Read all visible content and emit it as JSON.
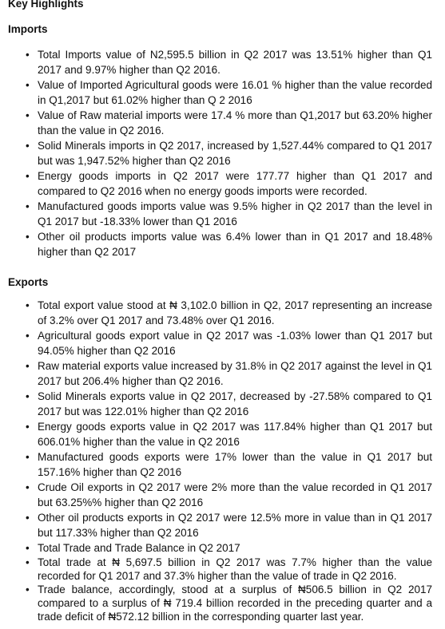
{
  "title": "Key Highlights",
  "sections": [
    {
      "heading": "Imports",
      "items": [
        "Total Imports value of N2,595.5 billion in Q2 2017 was 13.51% higher than Q1 2017 and 9.97% higher than Q2 2016.",
        "Value of Imported Agricultural goods were 16.01 % higher than the value recorded in Q1,2017 but 61.02% higher than Q 2 2016",
        "Value of Raw material imports were 17.4 % more than Q1,2017 but 63.20% higher than the value in Q2 2016.",
        "Solid Minerals imports in Q2 2017, increased by 1,527.44% compared to Q1 2017 but was 1,947.52% higher than Q2 2016",
        "Energy goods imports in Q2 2017 were 177.77 higher than Q1 2017 and compared to Q2 2016 when no energy goods imports were recorded.",
        "Manufactured goods imports value was 9.5% higher in Q2 2017 than the level in Q1 2017 but -18.33% lower than Q1 2016",
        "Other oil products imports value was 6.4% lower than in Q1 2017 and 18.48% higher than Q2 2017"
      ]
    },
    {
      "heading": "Exports",
      "items": [
        "Total export value stood at ₦ 3,102.0 billion in Q2, 2017 representing an increase of 3.2% over Q1 2017 and 73.48% over Q1 2016.",
        "Agricultural goods export value in Q2 2017 was -1.03% lower than Q1 2017 but 94.05% higher than Q2 2016",
        "Raw material exports value increased by 31.8% in Q2 2017 against the level in Q1 2017 but 206.4% higher than Q2 2016.",
        "Solid Minerals exports value in Q2 2017, decreased by -27.58% compared to Q1 2017 but was 122.01% higher than Q2 2016",
        "Energy goods exports value in Q2 2017 was 117.84% higher than Q1 2017 but 606.01% higher than the value in Q2 2016",
        "Manufactured goods exports were 17% lower than the value in Q1 2017 but 157.16% higher than Q2 2016",
        "Crude Oil exports in Q2 2017 were 2% more than the value recorded in Q1 2017 but 63.25%% higher than Q2 2016",
        "Other oil products exports in Q2 2017 were 12.5% more in value than in Q1 2017 but 117.33% higher than Q2 2016",
        "Total Trade and Trade Balance in Q2 2017",
        "Total trade at ₦ 5,697.5 billion in Q2 2017 was 7.7% higher than the value recorded for Q1 2017 and 37.3% higher than the value of trade in Q2 2016.",
        "Trade balance, accordingly, stood at a surplus of  ₦506.5 billion in Q2 2017 compared to a surplus of ₦ 719.4 billion recorded in the preceding quarter and a trade deficit of ₦572.12 billion in the corresponding quarter last year."
      ]
    }
  ]
}
